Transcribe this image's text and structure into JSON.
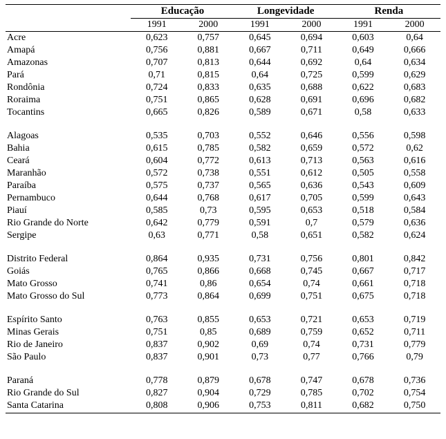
{
  "table": {
    "groups": [
      "Educação",
      "Longevidade",
      "Renda"
    ],
    "years": [
      "1991",
      "2000",
      "1991",
      "2000",
      "1991",
      "2000"
    ],
    "sections": [
      {
        "rows": [
          {
            "state": "Acre",
            "vals": [
              "0,623",
              "0,757",
              "0,645",
              "0,694",
              "0,603",
              "0,64"
            ]
          },
          {
            "state": "Amapá",
            "vals": [
              "0,756",
              "0,881",
              "0,667",
              "0,711",
              "0,649",
              "0,666"
            ]
          },
          {
            "state": "Amazonas",
            "vals": [
              "0,707",
              "0,813",
              "0,644",
              "0,692",
              "0,64",
              "0,634"
            ]
          },
          {
            "state": "Pará",
            "vals": [
              "0,71",
              "0,815",
              "0,64",
              "0,725",
              "0,599",
              "0,629"
            ]
          },
          {
            "state": "Rondônia",
            "vals": [
              "0,724",
              "0,833",
              "0,635",
              "0,688",
              "0,622",
              "0,683"
            ]
          },
          {
            "state": "Roraima",
            "vals": [
              "0,751",
              "0,865",
              "0,628",
              "0,691",
              "0,696",
              "0,682"
            ]
          },
          {
            "state": "Tocantins",
            "vals": [
              "0,665",
              "0,826",
              "0,589",
              "0,671",
              "0,58",
              "0,633"
            ]
          }
        ]
      },
      {
        "rows": [
          {
            "state": "Alagoas",
            "vals": [
              "0,535",
              "0,703",
              "0,552",
              "0,646",
              "0,556",
              "0,598"
            ]
          },
          {
            "state": "Bahia",
            "vals": [
              "0,615",
              "0,785",
              "0,582",
              "0,659",
              "0,572",
              "0,62"
            ]
          },
          {
            "state": "Ceará",
            "vals": [
              "0,604",
              "0,772",
              "0,613",
              "0,713",
              "0,563",
              "0,616"
            ]
          },
          {
            "state": "Maranhão",
            "vals": [
              "0,572",
              "0,738",
              "0,551",
              "0,612",
              "0,505",
              "0,558"
            ]
          },
          {
            "state": "Paraíba",
            "vals": [
              "0,575",
              "0,737",
              "0,565",
              "0,636",
              "0,543",
              "0,609"
            ]
          },
          {
            "state": "Pernambuco",
            "vals": [
              "0,644",
              "0,768",
              "0,617",
              "0,705",
              "0,599",
              "0,643"
            ]
          },
          {
            "state": "Piauí",
            "vals": [
              "0,585",
              "0,73",
              "0,595",
              "0,653",
              "0,518",
              "0,584"
            ]
          },
          {
            "state": "Rio Grande do Norte",
            "vals": [
              "0,642",
              "0,779",
              "0,591",
              "0,7",
              "0,579",
              "0,636"
            ]
          },
          {
            "state": "Sergipe",
            "vals": [
              "0,63",
              "0,771",
              "0,58",
              "0,651",
              "0,582",
              "0,624"
            ]
          }
        ]
      },
      {
        "rows": [
          {
            "state": "Distrito Federal",
            "vals": [
              "0,864",
              "0,935",
              "0,731",
              "0,756",
              "0,801",
              "0,842"
            ]
          },
          {
            "state": "Goiás",
            "vals": [
              "0,765",
              "0,866",
              "0,668",
              "0,745",
              "0,667",
              "0,717"
            ]
          },
          {
            "state": "Mato Grosso",
            "vals": [
              "0,741",
              "0,86",
              "0,654",
              "0,74",
              "0,661",
              "0,718"
            ]
          },
          {
            "state": "Mato Grosso do Sul",
            "vals": [
              "0,773",
              "0,864",
              "0,699",
              "0,751",
              "0,675",
              "0,718"
            ]
          }
        ]
      },
      {
        "rows": [
          {
            "state": "Espírito Santo",
            "vals": [
              "0,763",
              "0,855",
              "0,653",
              "0,721",
              "0,653",
              "0,719"
            ]
          },
          {
            "state": "Minas Gerais",
            "vals": [
              "0,751",
              "0,85",
              "0,689",
              "0,759",
              "0,652",
              "0,711"
            ]
          },
          {
            "state": "Rio de Janeiro",
            "vals": [
              "0,837",
              "0,902",
              "0,69",
              "0,74",
              "0,731",
              "0,779"
            ]
          },
          {
            "state": "São Paulo",
            "vals": [
              "0,837",
              "0,901",
              "0,73",
              "0,77",
              "0,766",
              "0,79"
            ]
          }
        ]
      },
      {
        "rows": [
          {
            "state": "Paraná",
            "vals": [
              "0,778",
              "0,879",
              "0,678",
              "0,747",
              "0,678",
              "0,736"
            ]
          },
          {
            "state": "Rio Grande do Sul",
            "vals": [
              "0,827",
              "0,904",
              "0,729",
              "0,785",
              "0,702",
              "0,754"
            ]
          },
          {
            "state": "Santa Catarina",
            "vals": [
              "0,808",
              "0,906",
              "0,753",
              "0,811",
              "0,682",
              "0,750"
            ]
          }
        ]
      }
    ]
  }
}
